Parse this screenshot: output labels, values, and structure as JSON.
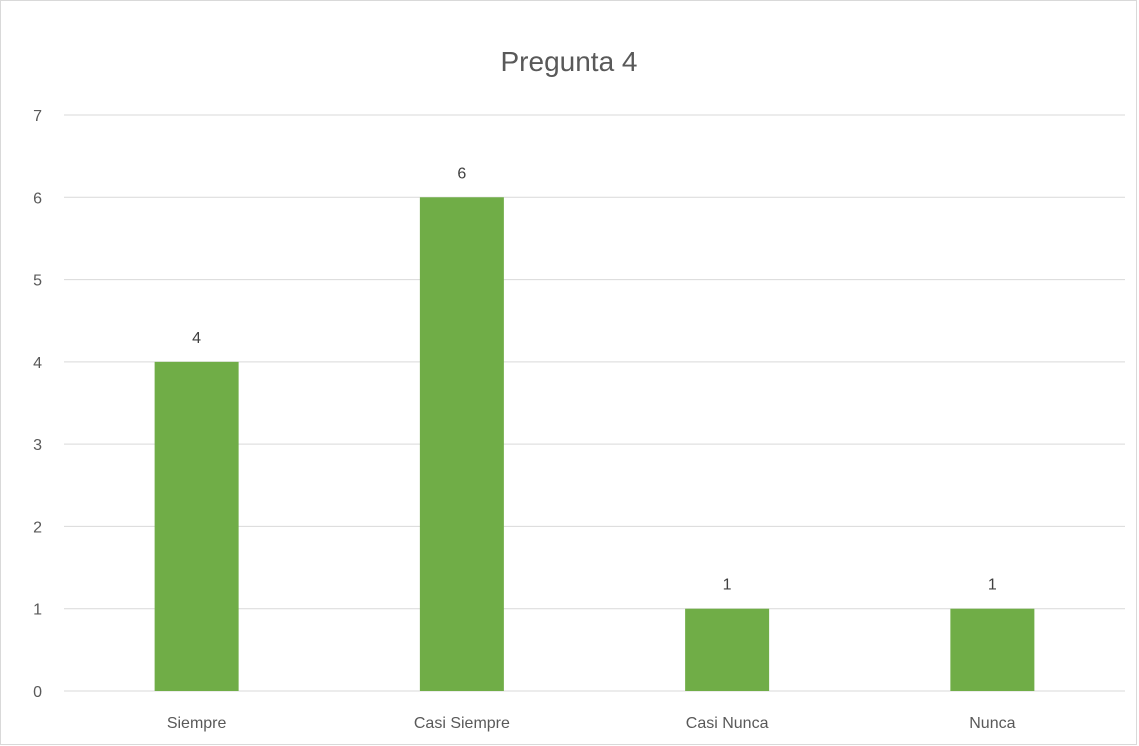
{
  "chart_data": {
    "type": "bar",
    "title": "Pregunta 4",
    "categories": [
      "Siempre",
      "Casi Siempre",
      "Casi Nunca",
      "Nunca"
    ],
    "values": [
      4,
      6,
      1,
      1
    ],
    "data_labels": [
      "4",
      "6",
      "1",
      "1"
    ],
    "ylim": [
      0,
      7
    ],
    "y_ticks": [
      "0",
      "1",
      "2",
      "3",
      "4",
      "5",
      "6",
      "7"
    ],
    "grid": true,
    "legend": "none",
    "xlabel": "",
    "ylabel": "",
    "colors": {
      "bar": "#70ad47",
      "grid": "#d9d9d9",
      "text": "#595959",
      "data_label": "#404040"
    }
  }
}
